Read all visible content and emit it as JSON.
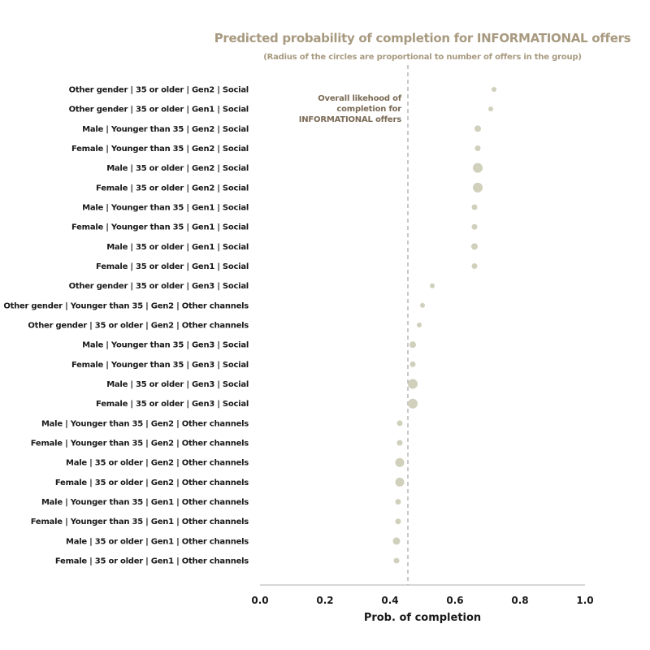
{
  "chart_data": {
    "type": "scatter",
    "title": "Predicted probability of completion for INFORMATIONAL offers",
    "subtitle": "(Radius of the circles are proportional to number of offers in the group)",
    "xlabel": "Prob. of completion",
    "xlim": [
      0.0,
      1.0
    ],
    "xticks": [
      "0.0",
      "0.2",
      "0.4",
      "0.6",
      "0.8",
      "1.0"
    ],
    "grid": false,
    "reference_line": {
      "value": 0.455,
      "style": "dashed",
      "label_lines": [
        "Overall likehood of",
        "completion for",
        "INFORMATIONAL offers"
      ]
    },
    "points": [
      {
        "label": "Other gender | 35 or older | Gen2 | Social",
        "x": 0.72,
        "size": 3
      },
      {
        "label": "Other gender | 35 or older | Gen1 | Social",
        "x": 0.71,
        "size": 3
      },
      {
        "label": "Male | Younger than 35 | Gen2 | Social",
        "x": 0.67,
        "size": 4
      },
      {
        "label": "Female | Younger than 35 | Gen2 | Social",
        "x": 0.67,
        "size": 3.5
      },
      {
        "label": "Male | 35 or older | Gen2 | Social",
        "x": 0.67,
        "size": 6
      },
      {
        "label": "Female | 35 or older | Gen2 | Social",
        "x": 0.67,
        "size": 6
      },
      {
        "label": "Male | Younger than 35 | Gen1 | Social",
        "x": 0.66,
        "size": 3.5
      },
      {
        "label": "Female | Younger than 35 | Gen1 | Social",
        "x": 0.66,
        "size": 3.5
      },
      {
        "label": "Male | 35 or older | Gen1 | Social",
        "x": 0.66,
        "size": 4
      },
      {
        "label": "Female | 35 or older | Gen1 | Social",
        "x": 0.66,
        "size": 3.5
      },
      {
        "label": "Other gender | 35 or older | Gen3 | Social",
        "x": 0.53,
        "size": 3
      },
      {
        "label": "Other gender | Younger than 35 | Gen2 | Other channels",
        "x": 0.5,
        "size": 3
      },
      {
        "label": "Other gender | 35 or older | Gen2 | Other channels",
        "x": 0.49,
        "size": 3
      },
      {
        "label": "Male | Younger than 35 | Gen3 | Social",
        "x": 0.47,
        "size": 4
      },
      {
        "label": "Female | Younger than 35 | Gen3 | Social",
        "x": 0.47,
        "size": 3.5
      },
      {
        "label": "Male | 35 or older | Gen3 | Social",
        "x": 0.47,
        "size": 6
      },
      {
        "label": "Female | 35 or older | Gen3 | Social",
        "x": 0.47,
        "size": 6
      },
      {
        "label": "Male | Younger than 35 | Gen2 | Other channels",
        "x": 0.43,
        "size": 3.5
      },
      {
        "label": "Female | Younger than 35 | Gen2 | Other channels",
        "x": 0.43,
        "size": 3.5
      },
      {
        "label": "Male | 35 or older | Gen2 | Other channels",
        "x": 0.43,
        "size": 5.5
      },
      {
        "label": "Female | 35 or older | Gen2 | Other channels",
        "x": 0.43,
        "size": 5.5
      },
      {
        "label": "Male | Younger than 35 | Gen1 | Other channels",
        "x": 0.425,
        "size": 3.5
      },
      {
        "label": "Female | Younger than 35 | Gen1 | Other channels",
        "x": 0.425,
        "size": 3.5
      },
      {
        "label": "Male | 35 or older | Gen1 | Other channels",
        "x": 0.42,
        "size": 4.5
      },
      {
        "label": "Female | 35 or older | Gen1 | Other channels",
        "x": 0.42,
        "size": 3.5
      }
    ],
    "colors": {
      "title": "#a89a80",
      "text": "#1a1a1a",
      "annotation": "#7a6a55",
      "points": "#d0d0bc",
      "reference_line": "#aaaaaa",
      "axis": "#c8c8c8"
    }
  }
}
